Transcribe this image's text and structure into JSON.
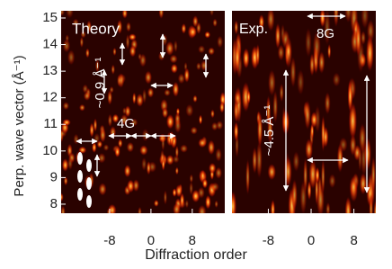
{
  "chart_data": {
    "type": "heatmap",
    "y_label": "Perp. wave vector (Å⁻¹)",
    "x_label": "Diffraction order",
    "ylim": [
      7.66,
      15.27
    ],
    "yticks": [
      8,
      9,
      10,
      11,
      12,
      13,
      14,
      15
    ],
    "panels": [
      {
        "title": "Theory",
        "xlim": [
          -17.4,
          14.3
        ],
        "xticks": [
          -8,
          0,
          8
        ],
        "annotations": [
          "~0.9 Å⁻¹",
          "4G"
        ]
      },
      {
        "title": "Exp.",
        "xlim": [
          -14.8,
          12.1
        ],
        "xticks": [
          -8,
          0,
          8
        ],
        "annotations": [
          "~4.5 Å⁻¹",
          "8G"
        ]
      }
    ]
  }
}
